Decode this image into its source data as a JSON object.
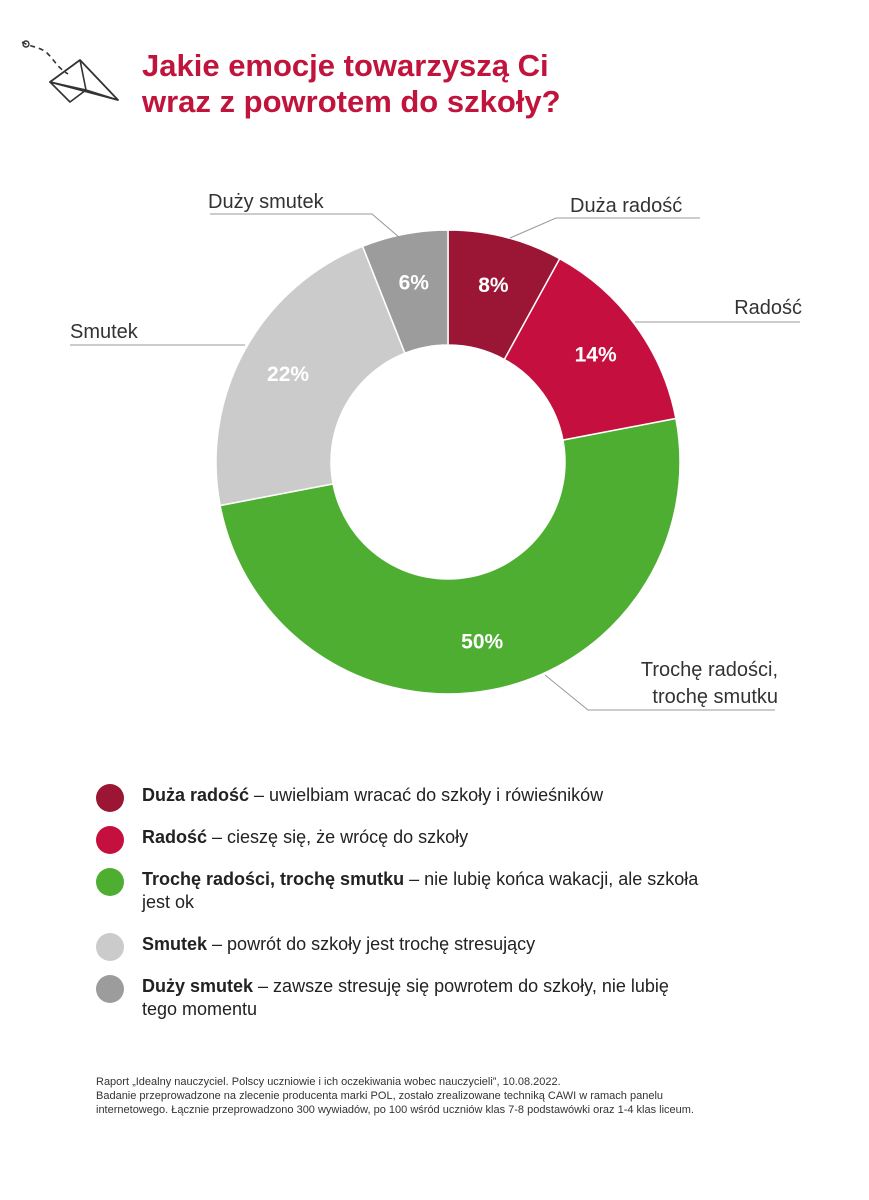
{
  "header": {
    "title_line1": "Jakie emocje towarzyszą Ci",
    "title_line2": "wraz z powrotem do szkoły?"
  },
  "colors": {
    "accent": "#c0143c",
    "duza_radosc": "#9b1535",
    "radosc": "#c50f3f",
    "troche": "#4eae32",
    "smutek": "#cbcbcb",
    "duzy_smutek": "#9c9c9c"
  },
  "chart_data": {
    "type": "pie",
    "donut": true,
    "categories": [
      "Duża radość",
      "Radość",
      "Trochę radości, trochę smutku",
      "Smutek",
      "Duży smutek"
    ],
    "values": [
      8,
      14,
      50,
      22,
      6
    ],
    "data_labels": [
      "8%",
      "14%",
      "50%",
      "22%",
      "6%"
    ],
    "callout_labels": [
      [
        "Duża radość"
      ],
      [
        "Radość"
      ],
      [
        "Trochę radości,",
        "trochę smutku"
      ],
      [
        "Smutek"
      ],
      [
        "Duży smutek"
      ]
    ],
    "colors": [
      "#9b1535",
      "#c50f3f",
      "#4eae32",
      "#cbcbcb",
      "#9c9c9c"
    ]
  },
  "legend": {
    "items": [
      {
        "bold": "Duża radość",
        "text": " – uwielbiam wracać do szkoły i rówieśników",
        "color": "#9b1535"
      },
      {
        "bold": "Radość",
        "text": " – cieszę się, że wrócę do szkoły",
        "color": "#c50f3f"
      },
      {
        "bold": "Trochę radości, trochę smutku",
        "text": " – nie lubię końca wakacji, ale szkoła jest ok",
        "color": "#4eae32"
      },
      {
        "bold": "Smutek",
        "text": " – powrót do szkoły jest trochę stresujący",
        "color": "#cbcbcb"
      },
      {
        "bold": "Duży smutek",
        "text": " – zawsze stresuję się powrotem do szkoły, nie lubię tego momentu",
        "color": "#9c9c9c"
      }
    ]
  },
  "footnote": {
    "line1": "Raport „Idealny nauczyciel. Polscy uczniowie i ich oczekiwania wobec nauczycieli”, 10.08.2022.",
    "line2": "Badanie przeprowadzone na zlecenie producenta marki POL, zostało zrealizowane techniką CAWI w ramach panelu",
    "line3": "internetowego. Łącznie przeprowadzono 300 wywiadów, po 100 wśród uczniów klas 7-8 podstawówki oraz 1-4 klas liceum."
  }
}
